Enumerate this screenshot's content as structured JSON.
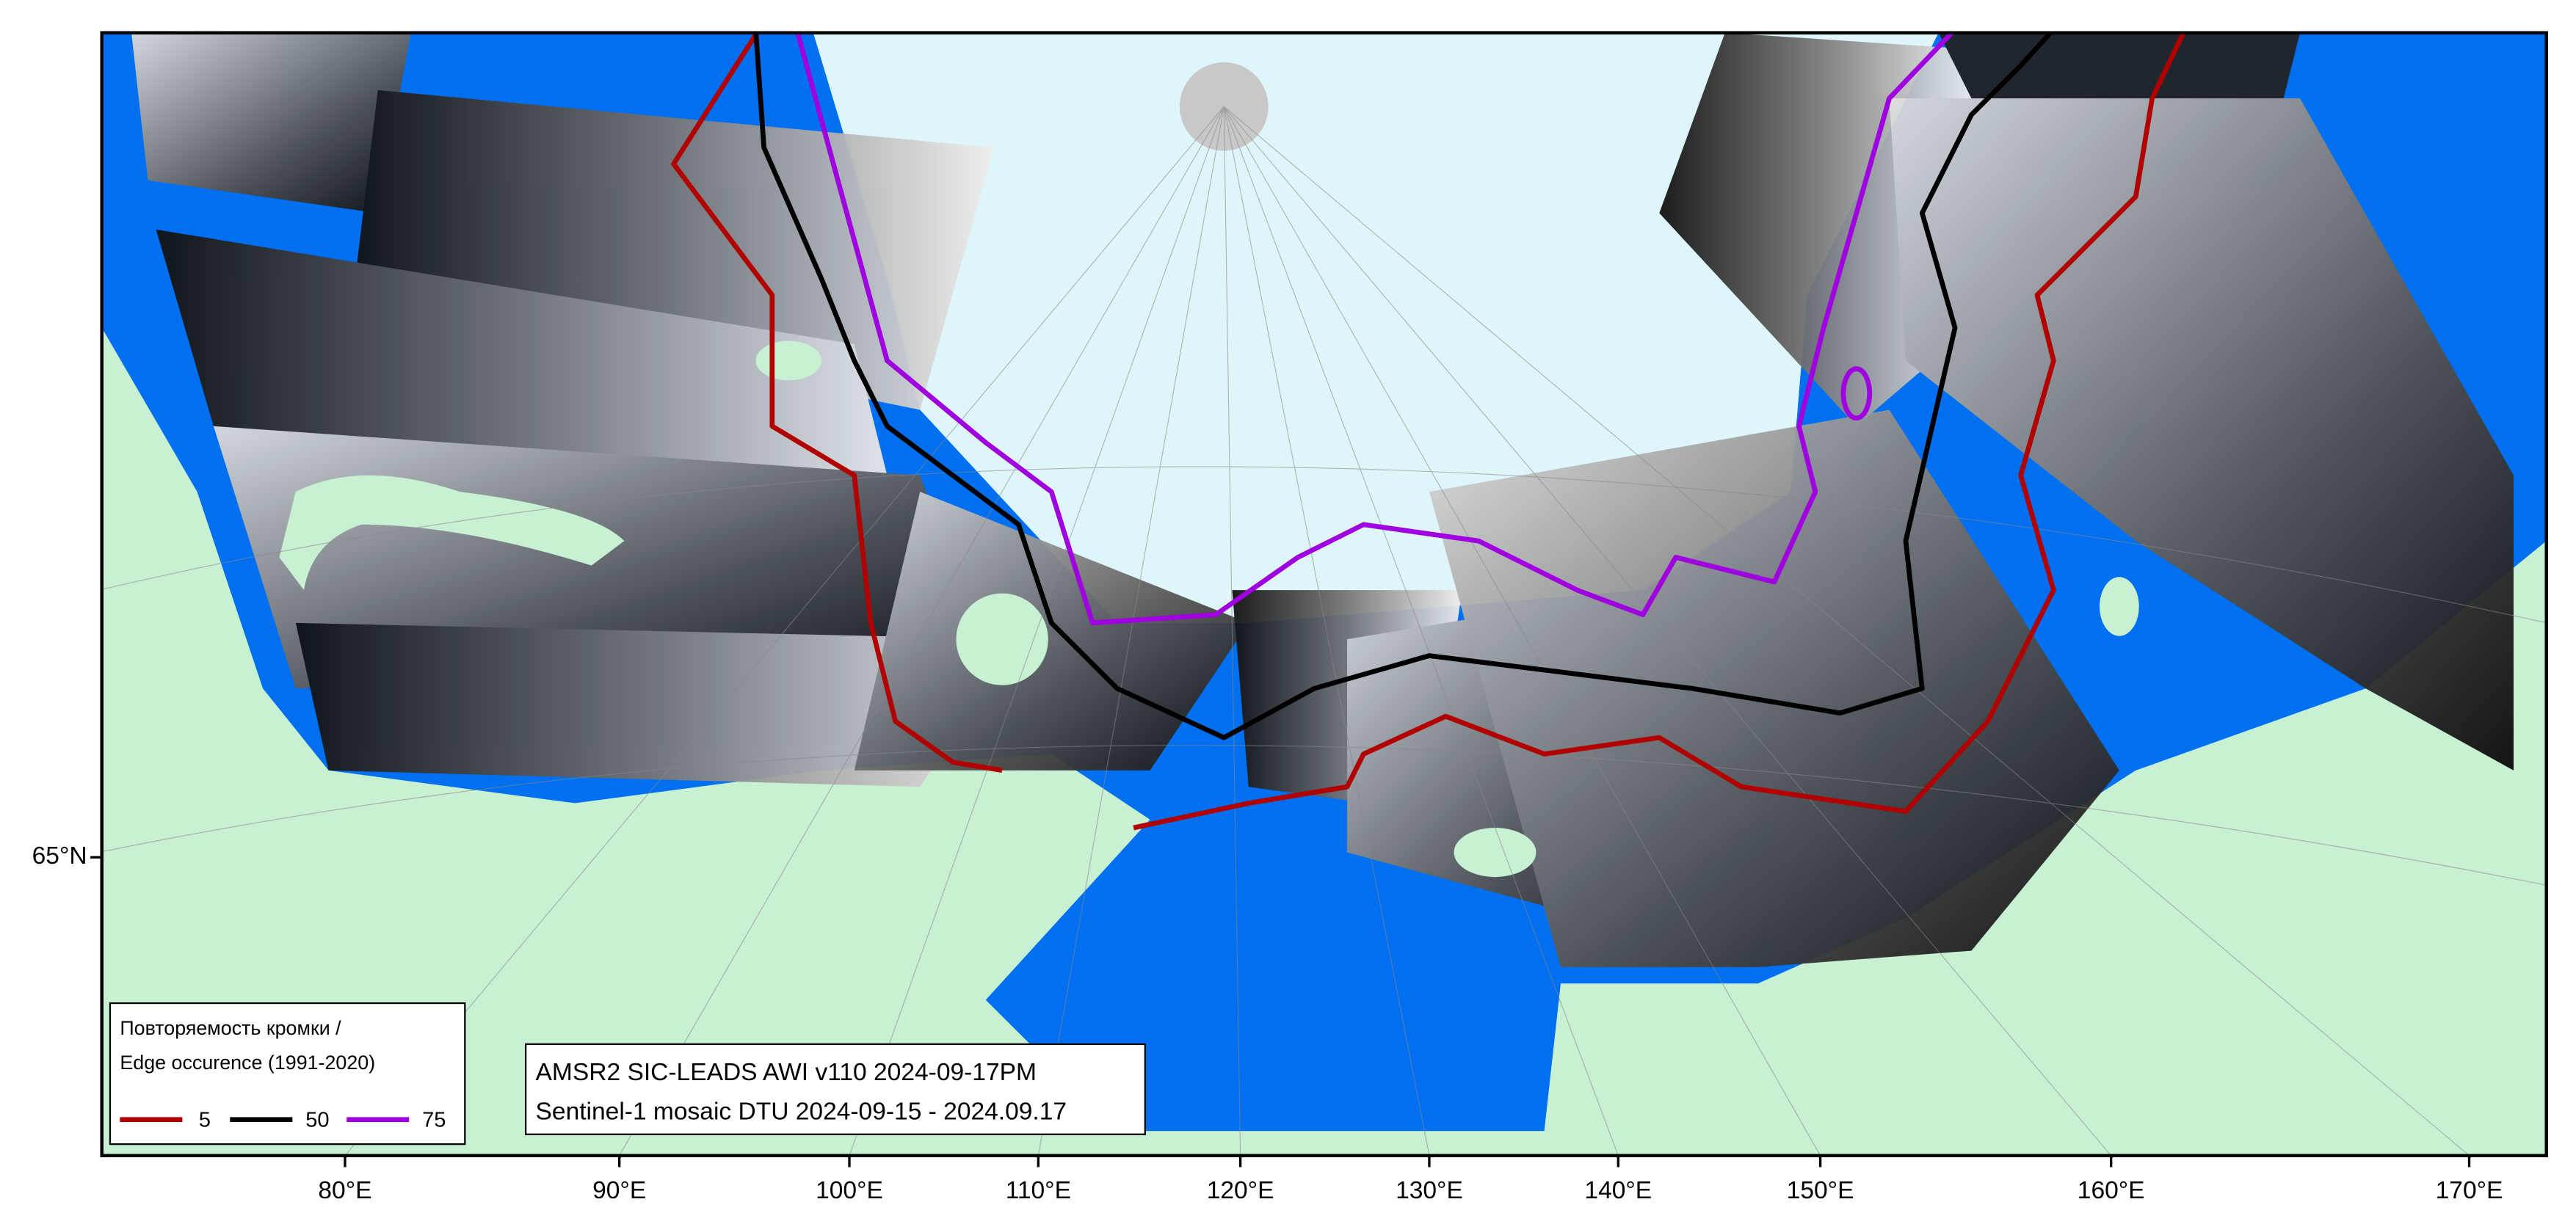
{
  "map": {
    "lon_labels": [
      "80°E",
      "90°E",
      "100°E",
      "110°E",
      "120°E",
      "130°E",
      "140°E",
      "150°E",
      "160°E",
      "170°E"
    ],
    "lat_labels": [
      "65°N"
    ],
    "legend": {
      "title": [
        "Повторяемость кромки /",
        "Edge occurence (1991-2020)"
      ],
      "items": [
        {
          "label": "5",
          "color": "#b00000"
        },
        {
          "label": "50",
          "color": "#000000"
        },
        {
          "label": "75",
          "color": "#a000e0"
        }
      ]
    },
    "info": [
      "AMSR2 SIC-LEADS AWI v110 2024-09-17PM",
      "Sentinel-1 mosaic DTU 2024-09-15 - 2024.09.17"
    ]
  }
}
